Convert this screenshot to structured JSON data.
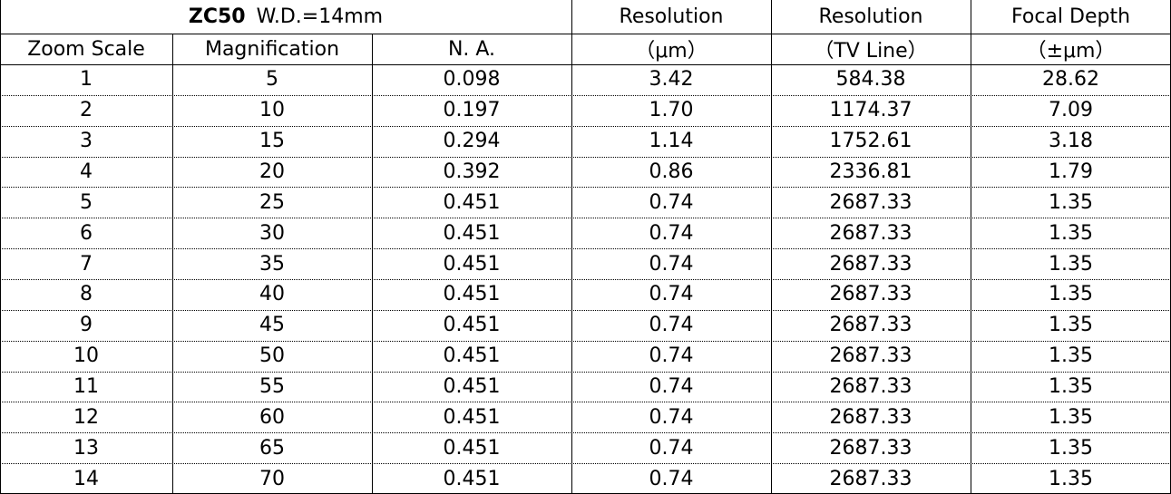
{
  "header": {
    "model": "ZC50",
    "working_distance": "W.D.=14mm",
    "columns_top": [
      "Resolution",
      "Resolution",
      "Focal Depth"
    ],
    "columns_bottom": [
      "Zoom Scale",
      "Magnification",
      "N. A.",
      "（μm）",
      "（TV Line）",
      "（±μm）"
    ]
  },
  "table": {
    "rows": [
      [
        "1",
        "5",
        "0.098",
        "3.42",
        "584.38",
        "28.62"
      ],
      [
        "2",
        "10",
        "0.197",
        "1.70",
        "1174.37",
        "7.09"
      ],
      [
        "3",
        "15",
        "0.294",
        "1.14",
        "1752.61",
        "3.18"
      ],
      [
        "4",
        "20",
        "0.392",
        "0.86",
        "2336.81",
        "1.79"
      ],
      [
        "5",
        "25",
        "0.451",
        "0.74",
        "2687.33",
        "1.35"
      ],
      [
        "6",
        "30",
        "0.451",
        "0.74",
        "2687.33",
        "1.35"
      ],
      [
        "7",
        "35",
        "0.451",
        "0.74",
        "2687.33",
        "1.35"
      ],
      [
        "8",
        "40",
        "0.451",
        "0.74",
        "2687.33",
        "1.35"
      ],
      [
        "9",
        "45",
        "0.451",
        "0.74",
        "2687.33",
        "1.35"
      ],
      [
        "10",
        "50",
        "0.451",
        "0.74",
        "2687.33",
        "1.35"
      ],
      [
        "11",
        "55",
        "0.451",
        "0.74",
        "2687.33",
        "1.35"
      ],
      [
        "12",
        "60",
        "0.451",
        "0.74",
        "2687.33",
        "1.35"
      ],
      [
        "13",
        "65",
        "0.451",
        "0.74",
        "2687.33",
        "1.35"
      ],
      [
        "14",
        "70",
        "0.451",
        "0.74",
        "2687.33",
        "1.35"
      ]
    ]
  }
}
